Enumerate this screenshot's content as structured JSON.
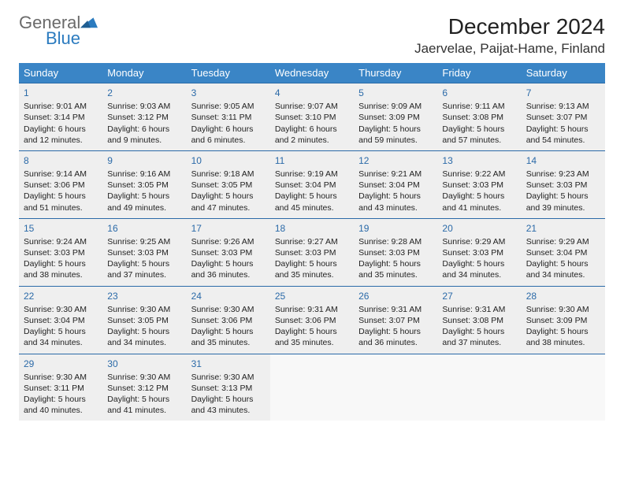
{
  "brand": {
    "word1": "General",
    "word2": "Blue",
    "color_general": "#6a6a6a",
    "color_blue": "#2b7bbf",
    "mark_color": "#2b7bbf"
  },
  "title": "December 2024",
  "location": "Jaervelae, Paijat-Hame, Finland",
  "colors": {
    "header_bg": "#3a85c6",
    "header_text": "#ffffff",
    "week_border": "#2b6aa8",
    "cell_filled_bg": "#efefef",
    "cell_empty_bg": "#f8f8f8",
    "day_num_color": "#2b6aa8",
    "page_bg": "#ffffff"
  },
  "day_headers": [
    "Sunday",
    "Monday",
    "Tuesday",
    "Wednesday",
    "Thursday",
    "Friday",
    "Saturday"
  ],
  "weeks": [
    [
      {
        "day": "1",
        "sunrise": "Sunrise: 9:01 AM",
        "sunset": "Sunset: 3:14 PM",
        "daylight": "Daylight: 6 hours and 12 minutes."
      },
      {
        "day": "2",
        "sunrise": "Sunrise: 9:03 AM",
        "sunset": "Sunset: 3:12 PM",
        "daylight": "Daylight: 6 hours and 9 minutes."
      },
      {
        "day": "3",
        "sunrise": "Sunrise: 9:05 AM",
        "sunset": "Sunset: 3:11 PM",
        "daylight": "Daylight: 6 hours and 6 minutes."
      },
      {
        "day": "4",
        "sunrise": "Sunrise: 9:07 AM",
        "sunset": "Sunset: 3:10 PM",
        "daylight": "Daylight: 6 hours and 2 minutes."
      },
      {
        "day": "5",
        "sunrise": "Sunrise: 9:09 AM",
        "sunset": "Sunset: 3:09 PM",
        "daylight": "Daylight: 5 hours and 59 minutes."
      },
      {
        "day": "6",
        "sunrise": "Sunrise: 9:11 AM",
        "sunset": "Sunset: 3:08 PM",
        "daylight": "Daylight: 5 hours and 57 minutes."
      },
      {
        "day": "7",
        "sunrise": "Sunrise: 9:13 AM",
        "sunset": "Sunset: 3:07 PM",
        "daylight": "Daylight: 5 hours and 54 minutes."
      }
    ],
    [
      {
        "day": "8",
        "sunrise": "Sunrise: 9:14 AM",
        "sunset": "Sunset: 3:06 PM",
        "daylight": "Daylight: 5 hours and 51 minutes."
      },
      {
        "day": "9",
        "sunrise": "Sunrise: 9:16 AM",
        "sunset": "Sunset: 3:05 PM",
        "daylight": "Daylight: 5 hours and 49 minutes."
      },
      {
        "day": "10",
        "sunrise": "Sunrise: 9:18 AM",
        "sunset": "Sunset: 3:05 PM",
        "daylight": "Daylight: 5 hours and 47 minutes."
      },
      {
        "day": "11",
        "sunrise": "Sunrise: 9:19 AM",
        "sunset": "Sunset: 3:04 PM",
        "daylight": "Daylight: 5 hours and 45 minutes."
      },
      {
        "day": "12",
        "sunrise": "Sunrise: 9:21 AM",
        "sunset": "Sunset: 3:04 PM",
        "daylight": "Daylight: 5 hours and 43 minutes."
      },
      {
        "day": "13",
        "sunrise": "Sunrise: 9:22 AM",
        "sunset": "Sunset: 3:03 PM",
        "daylight": "Daylight: 5 hours and 41 minutes."
      },
      {
        "day": "14",
        "sunrise": "Sunrise: 9:23 AM",
        "sunset": "Sunset: 3:03 PM",
        "daylight": "Daylight: 5 hours and 39 minutes."
      }
    ],
    [
      {
        "day": "15",
        "sunrise": "Sunrise: 9:24 AM",
        "sunset": "Sunset: 3:03 PM",
        "daylight": "Daylight: 5 hours and 38 minutes."
      },
      {
        "day": "16",
        "sunrise": "Sunrise: 9:25 AM",
        "sunset": "Sunset: 3:03 PM",
        "daylight": "Daylight: 5 hours and 37 minutes."
      },
      {
        "day": "17",
        "sunrise": "Sunrise: 9:26 AM",
        "sunset": "Sunset: 3:03 PM",
        "daylight": "Daylight: 5 hours and 36 minutes."
      },
      {
        "day": "18",
        "sunrise": "Sunrise: 9:27 AM",
        "sunset": "Sunset: 3:03 PM",
        "daylight": "Daylight: 5 hours and 35 minutes."
      },
      {
        "day": "19",
        "sunrise": "Sunrise: 9:28 AM",
        "sunset": "Sunset: 3:03 PM",
        "daylight": "Daylight: 5 hours and 35 minutes."
      },
      {
        "day": "20",
        "sunrise": "Sunrise: 9:29 AM",
        "sunset": "Sunset: 3:03 PM",
        "daylight": "Daylight: 5 hours and 34 minutes."
      },
      {
        "day": "21",
        "sunrise": "Sunrise: 9:29 AM",
        "sunset": "Sunset: 3:04 PM",
        "daylight": "Daylight: 5 hours and 34 minutes."
      }
    ],
    [
      {
        "day": "22",
        "sunrise": "Sunrise: 9:30 AM",
        "sunset": "Sunset: 3:04 PM",
        "daylight": "Daylight: 5 hours and 34 minutes."
      },
      {
        "day": "23",
        "sunrise": "Sunrise: 9:30 AM",
        "sunset": "Sunset: 3:05 PM",
        "daylight": "Daylight: 5 hours and 34 minutes."
      },
      {
        "day": "24",
        "sunrise": "Sunrise: 9:30 AM",
        "sunset": "Sunset: 3:06 PM",
        "daylight": "Daylight: 5 hours and 35 minutes."
      },
      {
        "day": "25",
        "sunrise": "Sunrise: 9:31 AM",
        "sunset": "Sunset: 3:06 PM",
        "daylight": "Daylight: 5 hours and 35 minutes."
      },
      {
        "day": "26",
        "sunrise": "Sunrise: 9:31 AM",
        "sunset": "Sunset: 3:07 PM",
        "daylight": "Daylight: 5 hours and 36 minutes."
      },
      {
        "day": "27",
        "sunrise": "Sunrise: 9:31 AM",
        "sunset": "Sunset: 3:08 PM",
        "daylight": "Daylight: 5 hours and 37 minutes."
      },
      {
        "day": "28",
        "sunrise": "Sunrise: 9:30 AM",
        "sunset": "Sunset: 3:09 PM",
        "daylight": "Daylight: 5 hours and 38 minutes."
      }
    ],
    [
      {
        "day": "29",
        "sunrise": "Sunrise: 9:30 AM",
        "sunset": "Sunset: 3:11 PM",
        "daylight": "Daylight: 5 hours and 40 minutes."
      },
      {
        "day": "30",
        "sunrise": "Sunrise: 9:30 AM",
        "sunset": "Sunset: 3:12 PM",
        "daylight": "Daylight: 5 hours and 41 minutes."
      },
      {
        "day": "31",
        "sunrise": "Sunrise: 9:30 AM",
        "sunset": "Sunset: 3:13 PM",
        "daylight": "Daylight: 5 hours and 43 minutes."
      },
      null,
      null,
      null,
      null
    ]
  ]
}
